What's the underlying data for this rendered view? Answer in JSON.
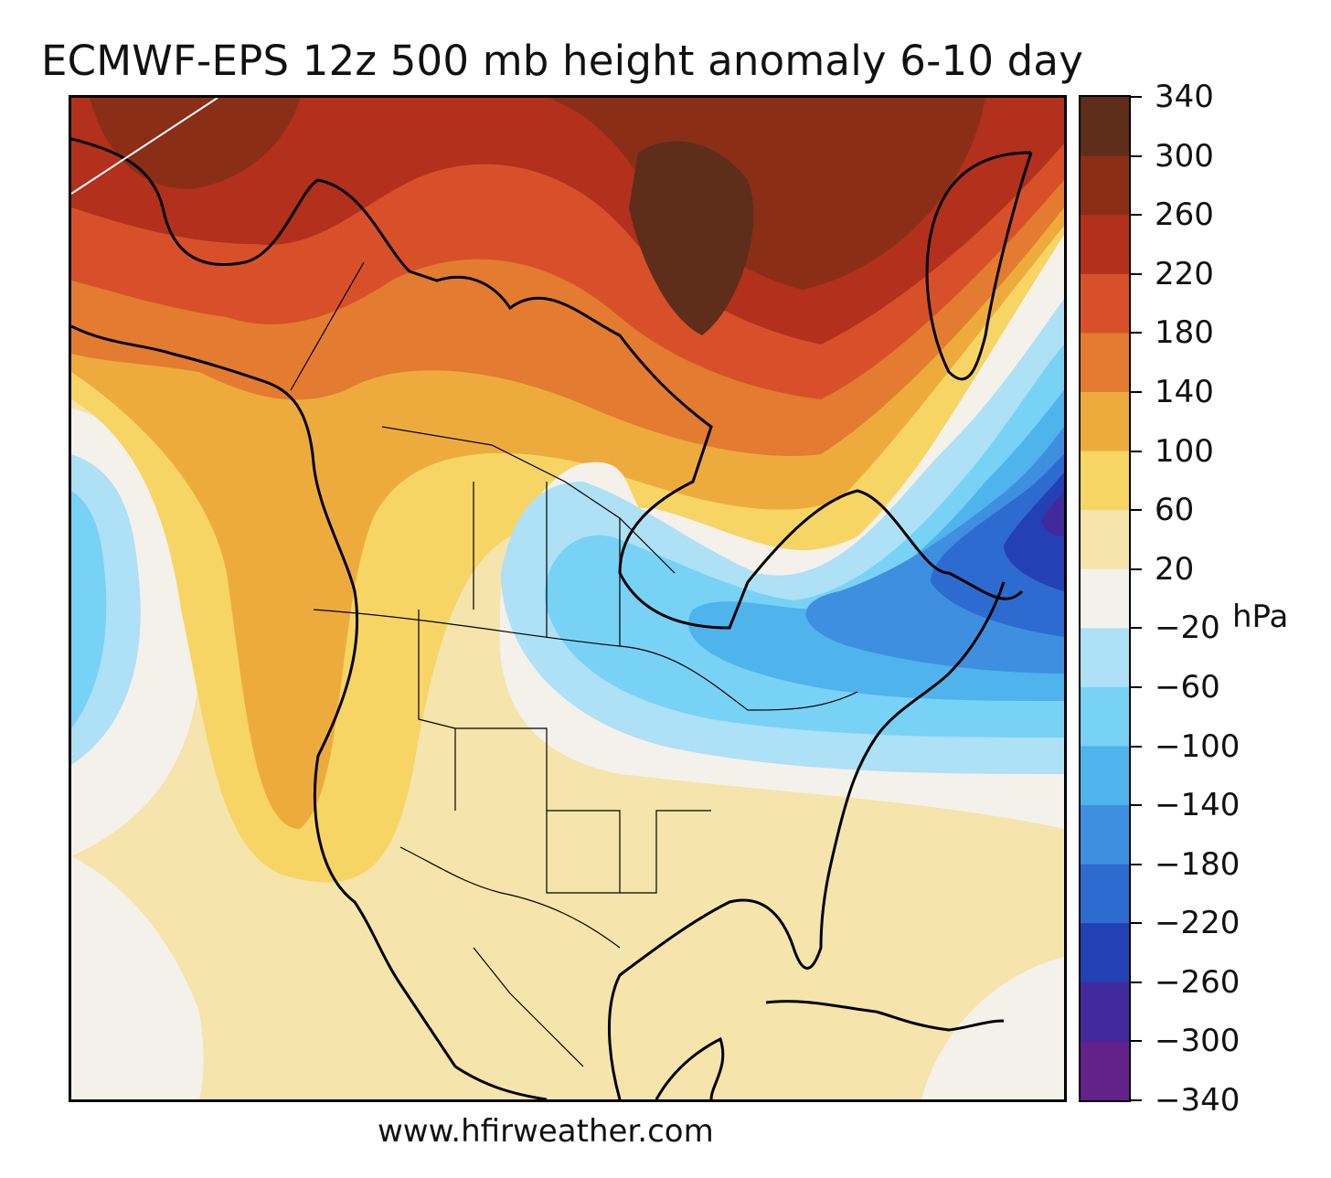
{
  "title": "ECMWF-EPS 12z 500 mb height anomaly 6-10 day",
  "footer": "www.hfirweather.com",
  "colorbar": {
    "unit": "hPa",
    "ticks": [
      "340",
      "300",
      "260",
      "220",
      "180",
      "140",
      "100",
      "60",
      "20",
      "−20",
      "−60",
      "−100",
      "−140",
      "−180",
      "−220",
      "−260",
      "−300",
      "−340"
    ],
    "band_colors": [
      "#5e2e1a",
      "#8a2e18",
      "#b2301c",
      "#d8502a",
      "#e37b30",
      "#eeab3d",
      "#f6d565",
      "#f5e4ab",
      "#f4f1ea",
      "#aee0f6",
      "#78d2f6",
      "#4fb3ec",
      "#3e8fe0",
      "#2d6bd0",
      "#2341b4",
      "#432a9c",
      "#63218a"
    ]
  },
  "map": {
    "region": "North America",
    "ocean_color": "#f5e4ab",
    "coastline_color": "#000000",
    "border_color": "#000000"
  }
}
